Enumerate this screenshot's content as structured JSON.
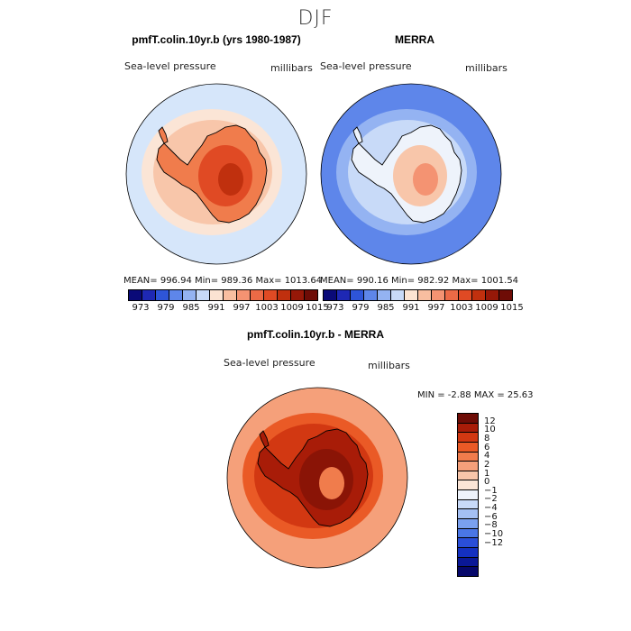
{
  "main_title": "DJF",
  "panels": {
    "model": {
      "title": "pmfT.colin.10yr.b (yrs 1980-1987)",
      "variable": "Sea-level pressure",
      "units": "millibars",
      "stats": "MEAN= 996.94   Min= 989.36   Max= 1013.64"
    },
    "obs": {
      "title": "MERRA",
      "variable": "Sea-level pressure",
      "units": "millibars",
      "stats": "MEAN= 990.16   Min= 982.92   Max= 1001.54"
    },
    "diff": {
      "title": "pmfT.colin.10yr.b - MERRA",
      "variable": "Sea-level pressure",
      "units": "millibars",
      "stats": "MIN =   -2.88 MAX =   25.63"
    }
  },
  "colorbar_top": {
    "colors": [
      "#0a0a78",
      "#1e28b4",
      "#2e55d8",
      "#5e86ea",
      "#94b3f2",
      "#c8daf8",
      "#fbe3d2",
      "#f8bea0",
      "#f49372",
      "#ec6a46",
      "#e04a24",
      "#c0300e",
      "#961808",
      "#6e0c06"
    ],
    "tick_labels": [
      "973",
      "979",
      "985",
      "991",
      "997",
      "1003",
      "1009",
      "1015"
    ]
  },
  "colorbar_diff": {
    "colors": [
      "#6e0c06",
      "#a81c08",
      "#d23812",
      "#ea5a26",
      "#f07c4c",
      "#f5a07a",
      "#f8c6aa",
      "#fbe5d6",
      "#eef3fb",
      "#c8daf8",
      "#a4c0f4",
      "#7aa0ee",
      "#4a76e6",
      "#2a4ed8",
      "#1430c0",
      "#0a1896",
      "#06086a"
    ],
    "tick_labels": [
      "12",
      "10",
      "8",
      "6",
      "4",
      "2",
      "1",
      "0",
      "−1",
      "−2",
      "−4",
      "−6",
      "−8",
      "−10",
      "−12"
    ]
  },
  "map_colors": {
    "model": {
      "ocean": "#d6e6fa",
      "band1": "#fbe5d6",
      "band2": "#f8c6aa",
      "land1": "#f07c4c",
      "land2": "#e04a24",
      "land3": "#c0300e"
    },
    "obs": {
      "ocean": "#5e86ea",
      "band1": "#94b3f2",
      "band2": "#c8daf8",
      "land1": "#eef3fb",
      "land2": "#f8c6aa",
      "land3": "#f49372"
    },
    "diff": {
      "ocean": "#f5a07a",
      "band1": "#ea5a26",
      "band2": "#d23812",
      "land1": "#a81c08",
      "land2": "#8a1406",
      "land3": "#f07c4c"
    }
  }
}
